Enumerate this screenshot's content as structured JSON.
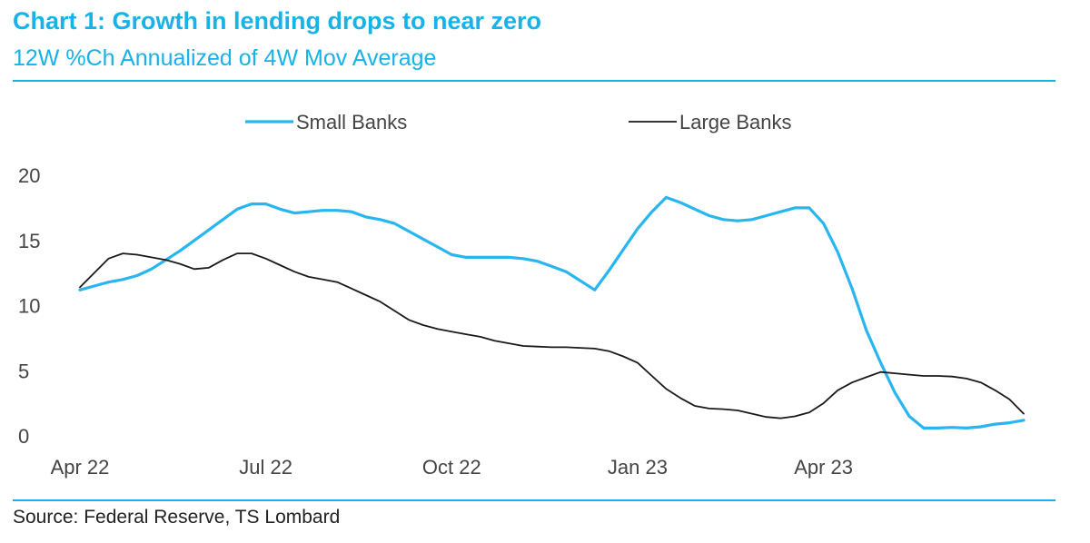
{
  "header": {
    "title": "Chart 1: Growth in lending drops to near zero",
    "subtitle": "12W %Ch Annualized of 4W Mov Average"
  },
  "footer": {
    "source": "Source: Federal Reserve, TS Lombard"
  },
  "colors": {
    "accent": "#17b3e8",
    "small_banks": "#29b6f0",
    "large_banks": "#1a1a1a"
  },
  "chart_data": {
    "type": "line",
    "title": "Chart 1: Growth in lending drops to near zero",
    "subtitle": "12W %Ch Annualized of 4W Mov Average",
    "xlabel": "",
    "ylabel": "",
    "x_ticks": [
      "Apr 22",
      "Jul 22",
      "Oct 22",
      "Jan 23",
      "Apr 23"
    ],
    "ylim": [
      0,
      20
    ],
    "y_ticks": [
      0,
      5,
      10,
      15,
      20
    ],
    "grid": false,
    "legend_position": "top",
    "x_unit": "weeks since Apr 22",
    "series": [
      {
        "name": "Small Banks",
        "color": "#29b6f0",
        "points": [
          [
            0,
            11.2
          ],
          [
            1,
            11.5
          ],
          [
            2,
            11.8
          ],
          [
            3,
            12.0
          ],
          [
            4,
            12.3
          ],
          [
            5,
            12.8
          ],
          [
            6,
            13.5
          ],
          [
            7,
            14.2
          ],
          [
            8,
            15.0
          ],
          [
            9,
            15.8
          ],
          [
            10,
            16.6
          ],
          [
            11,
            17.4
          ],
          [
            12,
            17.8
          ],
          [
            13,
            17.8
          ],
          [
            14,
            17.4
          ],
          [
            15,
            17.1
          ],
          [
            16,
            17.2
          ],
          [
            17,
            17.3
          ],
          [
            18,
            17.3
          ],
          [
            19,
            17.2
          ],
          [
            20,
            16.8
          ],
          [
            21,
            16.6
          ],
          [
            22,
            16.3
          ],
          [
            23,
            15.7
          ],
          [
            24,
            15.1
          ],
          [
            25,
            14.5
          ],
          [
            26,
            13.9
          ],
          [
            27,
            13.7
          ],
          [
            28,
            13.7
          ],
          [
            29,
            13.7
          ],
          [
            30,
            13.7
          ],
          [
            31,
            13.6
          ],
          [
            32,
            13.4
          ],
          [
            33,
            13.0
          ],
          [
            34,
            12.6
          ],
          [
            35,
            11.9
          ],
          [
            36,
            11.2
          ],
          [
            37,
            12.7
          ],
          [
            38,
            14.3
          ],
          [
            39,
            15.9
          ],
          [
            40,
            17.2
          ],
          [
            41,
            18.3
          ],
          [
            42,
            17.9
          ],
          [
            43,
            17.4
          ],
          [
            44,
            16.9
          ],
          [
            45,
            16.6
          ],
          [
            46,
            16.5
          ],
          [
            47,
            16.6
          ],
          [
            48,
            16.9
          ],
          [
            49,
            17.2
          ],
          [
            50,
            17.5
          ],
          [
            51,
            17.5
          ],
          [
            52,
            16.3
          ],
          [
            53,
            14.1
          ],
          [
            54,
            11.3
          ],
          [
            55,
            8.1
          ],
          [
            56,
            5.6
          ],
          [
            57,
            3.3
          ],
          [
            58,
            1.5
          ],
          [
            59,
            0.6
          ],
          [
            60,
            0.6
          ],
          [
            61,
            0.65
          ],
          [
            62,
            0.6
          ],
          [
            63,
            0.7
          ],
          [
            64,
            0.9
          ],
          [
            65,
            1.0
          ],
          [
            66,
            1.2
          ]
        ]
      },
      {
        "name": "Large Banks",
        "color": "#1a1a1a",
        "points": [
          [
            0,
            11.4
          ],
          [
            1,
            12.5
          ],
          [
            2,
            13.6
          ],
          [
            3,
            14.0
          ],
          [
            4,
            13.9
          ],
          [
            5,
            13.7
          ],
          [
            6,
            13.5
          ],
          [
            7,
            13.2
          ],
          [
            8,
            12.8
          ],
          [
            9,
            12.9
          ],
          [
            10,
            13.5
          ],
          [
            11,
            14.0
          ],
          [
            12,
            14.0
          ],
          [
            13,
            13.6
          ],
          [
            14,
            13.1
          ],
          [
            15,
            12.6
          ],
          [
            16,
            12.2
          ],
          [
            17,
            12.0
          ],
          [
            18,
            11.8
          ],
          [
            19,
            11.3
          ],
          [
            20,
            10.8
          ],
          [
            21,
            10.3
          ],
          [
            22,
            9.6
          ],
          [
            23,
            8.9
          ],
          [
            24,
            8.5
          ],
          [
            25,
            8.2
          ],
          [
            26,
            8.0
          ],
          [
            27,
            7.8
          ],
          [
            28,
            7.6
          ],
          [
            29,
            7.3
          ],
          [
            30,
            7.1
          ],
          [
            31,
            6.9
          ],
          [
            32,
            6.85
          ],
          [
            33,
            6.8
          ],
          [
            34,
            6.8
          ],
          [
            35,
            6.75
          ],
          [
            36,
            6.7
          ],
          [
            37,
            6.5
          ],
          [
            38,
            6.1
          ],
          [
            39,
            5.6
          ],
          [
            40,
            4.6
          ],
          [
            41,
            3.6
          ],
          [
            42,
            2.9
          ],
          [
            43,
            2.3
          ],
          [
            44,
            2.1
          ],
          [
            45,
            2.05
          ],
          [
            46,
            1.95
          ],
          [
            47,
            1.7
          ],
          [
            48,
            1.45
          ],
          [
            49,
            1.35
          ],
          [
            50,
            1.5
          ],
          [
            51,
            1.8
          ],
          [
            52,
            2.5
          ],
          [
            53,
            3.5
          ],
          [
            54,
            4.1
          ],
          [
            55,
            4.5
          ],
          [
            56,
            4.9
          ],
          [
            57,
            4.8
          ],
          [
            58,
            4.7
          ],
          [
            59,
            4.6
          ],
          [
            60,
            4.6
          ],
          [
            61,
            4.55
          ],
          [
            62,
            4.4
          ],
          [
            63,
            4.1
          ],
          [
            64,
            3.5
          ],
          [
            65,
            2.8
          ],
          [
            66,
            1.7
          ]
        ]
      }
    ]
  }
}
